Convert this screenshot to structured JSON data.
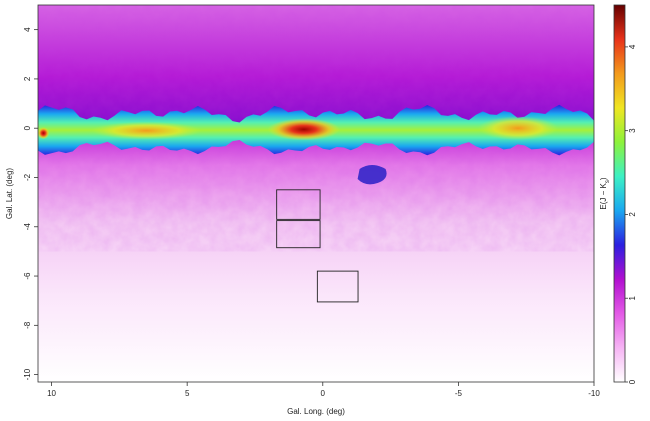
{
  "chart_data": {
    "type": "heatmap",
    "title": "",
    "xlabel": "Gal. Long. (deg)",
    "ylabel": "Gal. Lat. (deg)",
    "xlim": [
      10.5,
      -10
    ],
    "ylim": [
      -10.3,
      5
    ],
    "x_ticks": [
      10,
      5,
      0,
      -5,
      -10
    ],
    "y_ticks": [
      4,
      2,
      0,
      -2,
      -4,
      -6,
      -8,
      -10
    ],
    "colorbar": {
      "label_main": "E(J − K",
      "label_sub": "s",
      "label_end": ")",
      "range": [
        0,
        4.5
      ],
      "ticks": [
        0,
        1,
        2,
        3,
        4
      ],
      "colors": [
        "#ffffff",
        "#f6b4f4",
        "#e35ae6",
        "#b10fd0",
        "#2b1fe0",
        "#1aa8f0",
        "#3cf1c4",
        "#8df23a",
        "#f0e622",
        "#f39a1c",
        "#e8321a",
        "#650000"
      ]
    },
    "boxes": [
      {
        "l_min": 0.1,
        "l_max": 1.7,
        "b_min": -3.7,
        "b_max": -2.5
      },
      {
        "l_min": 0.1,
        "l_max": 1.7,
        "b_min": -4.85,
        "b_max": -3.75
      },
      {
        "l_min": -1.3,
        "l_max": 0.2,
        "b_min": -7.05,
        "b_max": -5.8
      }
    ],
    "grid": false,
    "legend": "colorbar-right"
  }
}
